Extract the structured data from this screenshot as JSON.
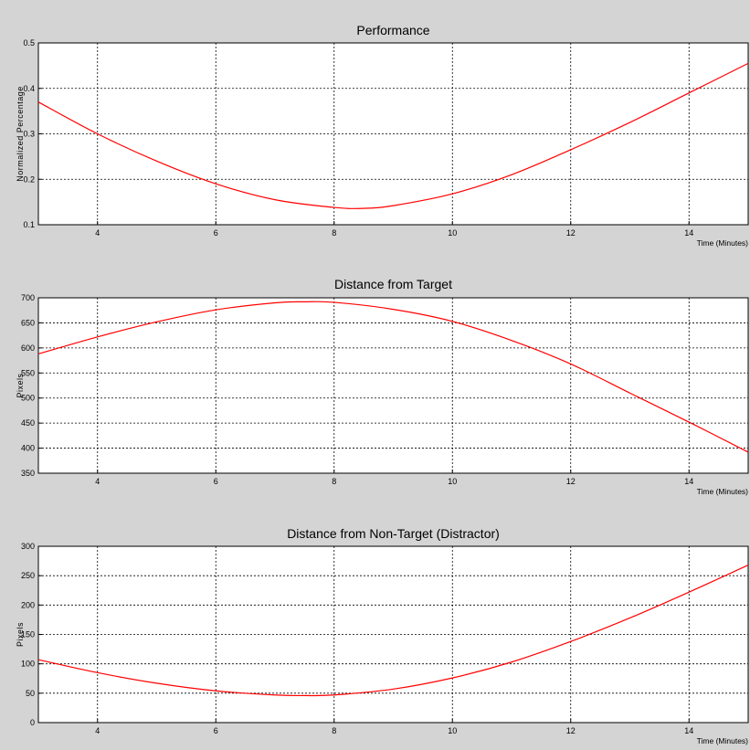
{
  "chart_data": [
    {
      "type": "line",
      "title": "Performance",
      "xlabel": "Time (Minutes)",
      "ylabel": "Normalized Percentage",
      "xlim": [
        3,
        15
      ],
      "ylim": [
        0.1,
        0.5
      ],
      "xticks": [
        "4",
        "6",
        "8",
        "10",
        "12",
        "14"
      ],
      "yticks": [
        "0.1",
        "0.2",
        "0.3",
        "0.4",
        "0.5"
      ],
      "grid": true,
      "line_color": "#ff0000",
      "series": [
        {
          "x": [
            3,
            4,
            5,
            6,
            7,
            8,
            8.5,
            9,
            10,
            11,
            12,
            13,
            14,
            15
          ],
          "y": [
            0.37,
            0.3,
            0.24,
            0.19,
            0.155,
            0.138,
            0.136,
            0.142,
            0.168,
            0.21,
            0.265,
            0.325,
            0.39,
            0.455
          ]
        }
      ]
    },
    {
      "type": "line",
      "title": "Distance from Target",
      "xlabel": "Time (Minutes)",
      "ylabel": "Pixels",
      "xlim": [
        3,
        15
      ],
      "ylim": [
        350,
        700
      ],
      "xticks": [
        "4",
        "6",
        "8",
        "10",
        "12",
        "14"
      ],
      "yticks": [
        "350",
        "400",
        "450",
        "500",
        "550",
        "600",
        "650",
        "700"
      ],
      "grid": true,
      "line_color": "#ff0000",
      "series": [
        {
          "x": [
            3,
            4,
            5,
            6,
            7,
            7.5,
            8,
            9,
            10,
            11,
            12,
            13,
            14,
            15
          ],
          "y": [
            588,
            622,
            652,
            676,
            690,
            692,
            691,
            677,
            653,
            615,
            568,
            510,
            452,
            392
          ]
        }
      ]
    },
    {
      "type": "line",
      "title": "Distance from Non-Target (Distractor)",
      "xlabel": "Time (Minutes)",
      "ylabel": "Pixels",
      "xlim": [
        3,
        15
      ],
      "ylim": [
        0,
        300
      ],
      "xticks": [
        "4",
        "6",
        "8",
        "10",
        "12",
        "14"
      ],
      "yticks": [
        "0",
        "50",
        "100",
        "150",
        "200",
        "250",
        "300"
      ],
      "grid": true,
      "line_color": "#ff0000",
      "series": [
        {
          "x": [
            3,
            4,
            5,
            6,
            7,
            7.5,
            8,
            9,
            10,
            11,
            12,
            13,
            14,
            15
          ],
          "y": [
            107,
            85,
            67,
            54,
            47,
            46,
            47,
            57,
            76,
            103,
            138,
            178,
            222,
            268
          ]
        }
      ]
    }
  ]
}
